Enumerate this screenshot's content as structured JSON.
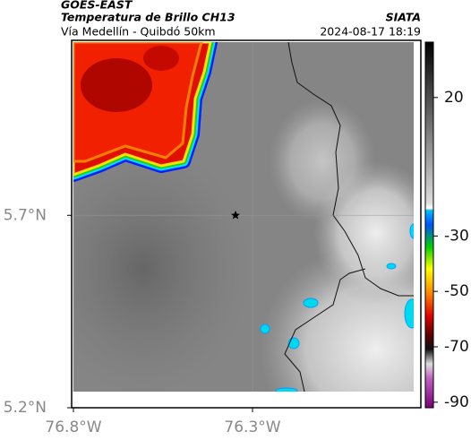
{
  "header": {
    "satellite": "GOES-EAST",
    "product": "Temperatura de Brillo CH13",
    "source": "SIATA",
    "region": "Vía Medellín - Quibdó 50km",
    "timestamp": "2024-08-17 18:19"
  },
  "map": {
    "xlim": [
      -76.8,
      -75.83
    ],
    "ylim": [
      5.2,
      6.15
    ],
    "xticks": [
      {
        "value": -76.8,
        "label": "76.8°W"
      },
      {
        "value": -76.3,
        "label": "76.3°W"
      }
    ],
    "yticks": [
      {
        "value": 5.7,
        "label": "5.7°N"
      },
      {
        "value": 5.2,
        "label": "5.2°N"
      }
    ],
    "grid": true
  },
  "colorbar": {
    "lim": [
      -92,
      40
    ],
    "ticks": [
      20,
      -30,
      -50,
      -70,
      -90
    ]
  }
}
